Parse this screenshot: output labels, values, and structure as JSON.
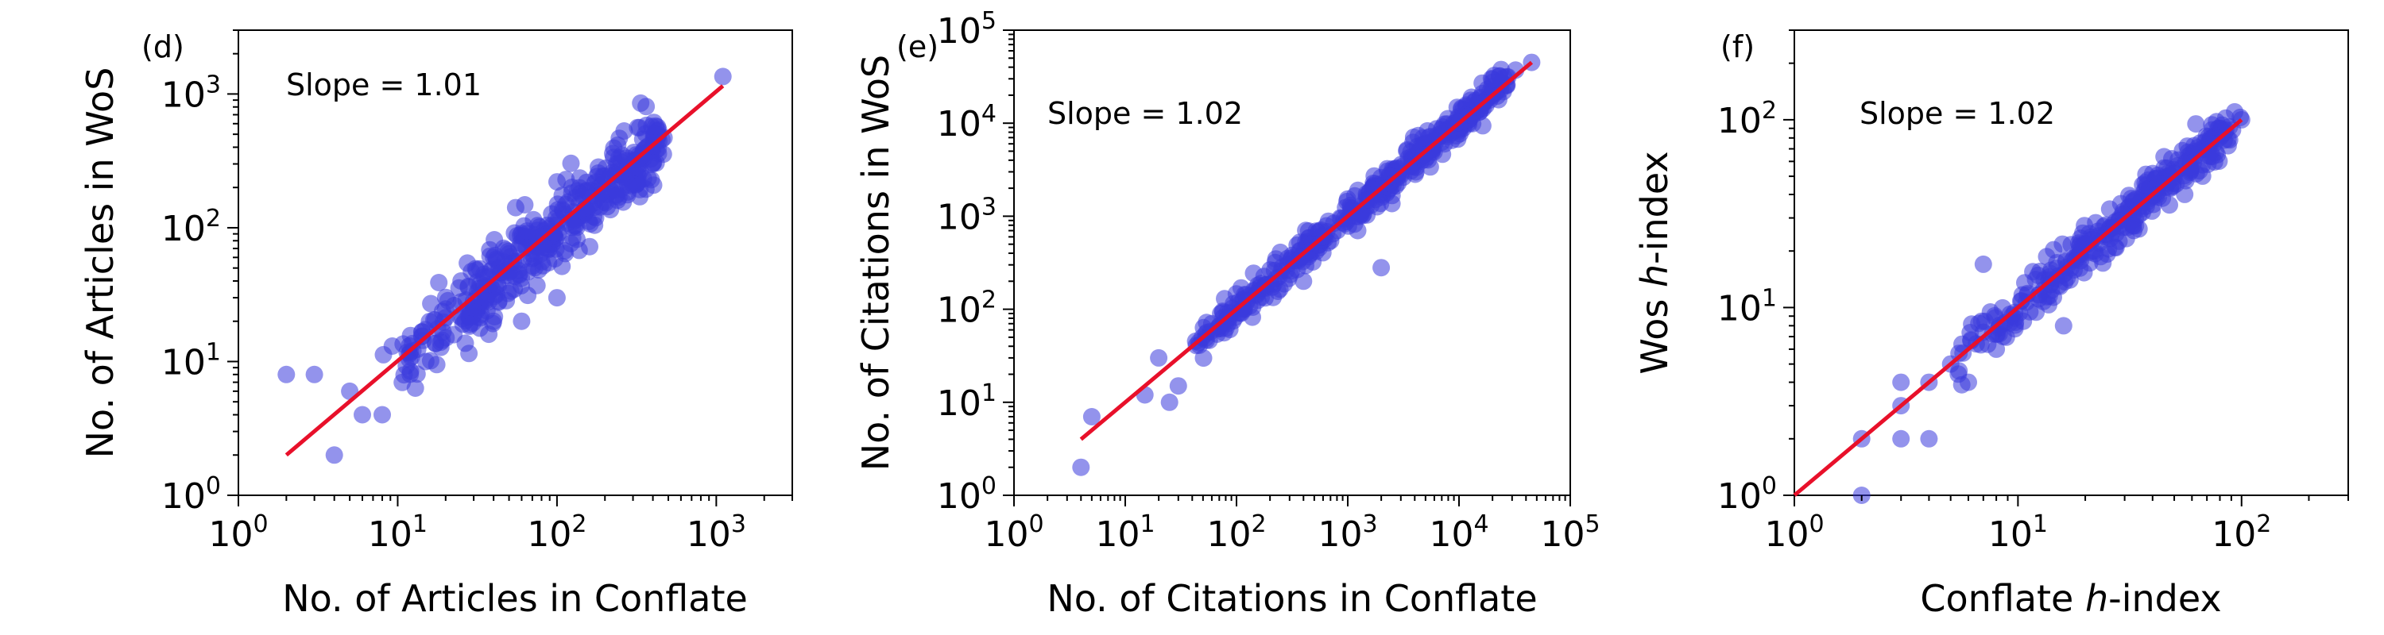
{
  "chart_data": [
    {
      "type": "scatter",
      "panel": "(d)",
      "scale": "log-log",
      "xlabel": "No. of Articles in Conflate",
      "ylabel": "No. of Articles in WoS",
      "xlim": [
        1,
        3000
      ],
      "ylim": [
        1,
        3000
      ],
      "annotation": "Slope = 1.01",
      "point_color": "#3b3bdc",
      "fit_color": "#e8102a",
      "fit_line": {
        "x": [
          2,
          1100
        ],
        "y": [
          2,
          1150
        ]
      },
      "x_ticks": [
        {
          "base": "10",
          "exp": "0"
        },
        {
          "base": "10",
          "exp": "1"
        },
        {
          "base": "10",
          "exp": "2"
        },
        {
          "base": "10",
          "exp": "3"
        }
      ],
      "y_ticks": [
        {
          "base": "10",
          "exp": "0"
        },
        {
          "base": "10",
          "exp": "1"
        },
        {
          "base": "10",
          "exp": "2"
        },
        {
          "base": "10",
          "exp": "3"
        }
      ],
      "outliers": [
        [
          2,
          8
        ],
        [
          3,
          8
        ],
        [
          4,
          2
        ],
        [
          5,
          6
        ],
        [
          6,
          4
        ],
        [
          8,
          4
        ],
        [
          15,
          10
        ],
        [
          40,
          20
        ],
        [
          60,
          20
        ],
        [
          100,
          30
        ],
        [
          1100,
          1350
        ],
        [
          25,
          40
        ],
        [
          40,
          60
        ]
      ],
      "cloud": {
        "x_range": [
          8,
          450
        ],
        "spread": 0.14,
        "count": 420,
        "seed": 11
      }
    },
    {
      "type": "scatter",
      "panel": "(e)",
      "scale": "log-log",
      "xlabel": "No. of Citations in Conflate",
      "ylabel": "No. of Citations in WoS",
      "xlim": [
        1,
        100000
      ],
      "ylim": [
        1,
        100000
      ],
      "annotation": "Slope = 1.02",
      "point_color": "#3b3bdc",
      "fit_color": "#e8102a",
      "fit_line": {
        "x": [
          4,
          45000
        ],
        "y": [
          4,
          45000
        ]
      },
      "x_ticks": [
        {
          "base": "10",
          "exp": "0"
        },
        {
          "base": "10",
          "exp": "1"
        },
        {
          "base": "10",
          "exp": "2"
        },
        {
          "base": "10",
          "exp": "3"
        },
        {
          "base": "10",
          "exp": "4"
        },
        {
          "base": "10",
          "exp": "5"
        }
      ],
      "y_ticks": [
        {
          "base": "10",
          "exp": "0"
        },
        {
          "base": "10",
          "exp": "1"
        },
        {
          "base": "10",
          "exp": "2"
        },
        {
          "base": "10",
          "exp": "3"
        },
        {
          "base": "10",
          "exp": "4"
        },
        {
          "base": "10",
          "exp": "5"
        }
      ],
      "outliers": [
        [
          4,
          2
        ],
        [
          5,
          7
        ],
        [
          15,
          12
        ],
        [
          20,
          30
        ],
        [
          25,
          10
        ],
        [
          30,
          15
        ],
        [
          60,
          70
        ],
        [
          2000,
          280
        ],
        [
          400,
          200
        ],
        [
          45000,
          45000
        ]
      ],
      "cloud": {
        "x_range": [
          40,
          30000
        ],
        "spread": 0.09,
        "count": 430,
        "seed": 23
      }
    },
    {
      "type": "scatter",
      "panel": "(f)",
      "scale": "log-log",
      "xlabel": "Conflate h-index",
      "ylabel": "Wos h-index",
      "xlim": [
        1,
        300
      ],
      "ylim": [
        1,
        300
      ],
      "annotation": "Slope = 1.02",
      "point_color": "#3b3bdc",
      "fit_color": "#e8102a",
      "fit_line": {
        "x": [
          1,
          100
        ],
        "y": [
          1,
          100
        ]
      },
      "x_ticks": [
        {
          "base": "10",
          "exp": "0"
        },
        {
          "base": "10",
          "exp": "1"
        },
        {
          "base": "10",
          "exp": "2"
        }
      ],
      "y_ticks": [
        {
          "base": "10",
          "exp": "0"
        },
        {
          "base": "10",
          "exp": "1"
        },
        {
          "base": "10",
          "exp": "2"
        }
      ],
      "outliers": [
        [
          2,
          1
        ],
        [
          2,
          2
        ],
        [
          3,
          2
        ],
        [
          4,
          2
        ],
        [
          3,
          3
        ],
        [
          3,
          4
        ],
        [
          4,
          4
        ],
        [
          5,
          5
        ],
        [
          6,
          4
        ],
        [
          7,
          17
        ],
        [
          8,
          6
        ],
        [
          16,
          8
        ],
        [
          100,
          100
        ]
      ],
      "cloud": {
        "x_range": [
          5,
          90
        ],
        "spread": 0.06,
        "count": 320,
        "seed": 37
      }
    }
  ],
  "labels": {
    "panel_d": "(d)",
    "panel_e": "(e)",
    "panel_f": "(f)",
    "slope_d": "Slope = 1.01",
    "slope_e": "Slope = 1.02",
    "slope_f": "Slope = 1.02",
    "xlabel_d": "No. of Articles in Conflate",
    "ylabel_d": "No. of Articles in WoS",
    "xlabel_e": "No. of Citations in Conflate",
    "ylabel_e": "No. of Citations in WoS",
    "xlabel_f_pre": "Conflate ",
    "xlabel_f_ital": "h",
    "xlabel_f_post": "-index",
    "ylabel_f_pre": "Wos ",
    "ylabel_f_ital": "h",
    "ylabel_f_post": "-index"
  }
}
